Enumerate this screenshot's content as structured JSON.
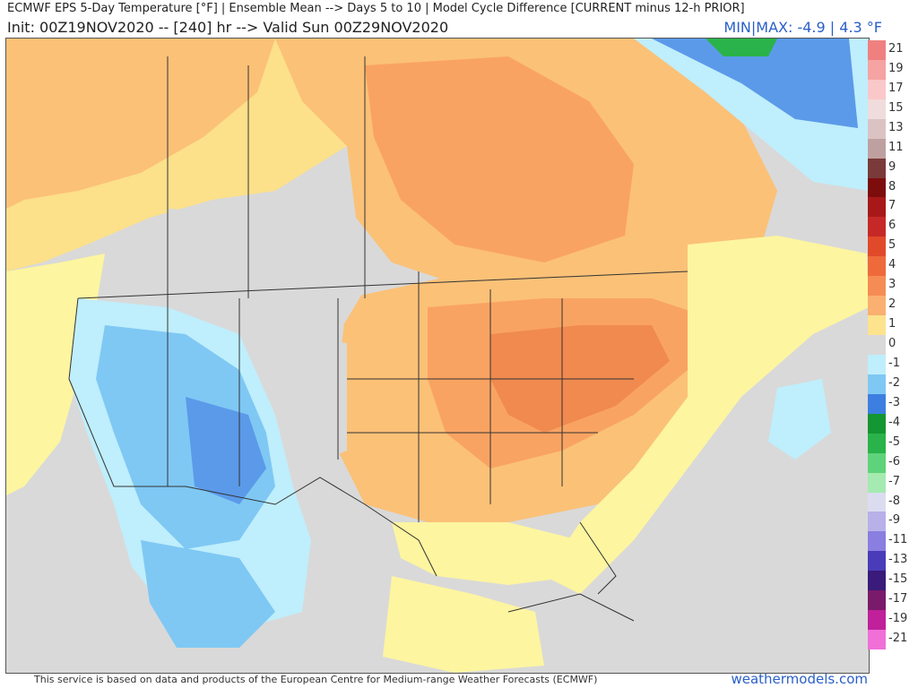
{
  "header": {
    "title": "ECMWF EPS 5-Day Temperature [°F] | Ensemble Mean --> Days 5 to 10 | Model Cycle Difference [CURRENT minus 12-h PRIOR]",
    "subtitle": "Init: 00Z19NOV2020 -- [240] hr --> Valid Sun 00Z29NOV2020",
    "minmax": "MIN|MAX: -4.9 | 4.3 °F"
  },
  "map": {
    "region": "North America",
    "colors": {
      "warm1": "#fdf5a0",
      "warm2": "#fce08a",
      "warm3": "#fbc177",
      "warm4": "#f9a362",
      "warm5": "#f08a4f",
      "neutral": "#d9d9d9",
      "cool1": "#bfeefc",
      "cool2": "#7fc8f4",
      "cool3": "#5b9ae9",
      "cool4": "#3a6fd8",
      "green": "#2ab34a",
      "border": "#333333"
    }
  },
  "legend": {
    "items": [
      {
        "label": "21",
        "color": "#f08080"
      },
      {
        "label": "19",
        "color": "#f5a3a3"
      },
      {
        "label": "17",
        "color": "#fac8c8"
      },
      {
        "label": "15",
        "color": "#f0dcdc"
      },
      {
        "label": "13",
        "color": "#dcc3c3"
      },
      {
        "label": "11",
        "color": "#bfa0a0"
      },
      {
        "label": "9",
        "color": "#7a3a3a"
      },
      {
        "label": "8",
        "color": "#7d0d0d"
      },
      {
        "label": "7",
        "color": "#a81818"
      },
      {
        "label": "6",
        "color": "#c62828"
      },
      {
        "label": "5",
        "color": "#e04a2a"
      },
      {
        "label": "4",
        "color": "#ee6a3a"
      },
      {
        "label": "3",
        "color": "#f58c55"
      },
      {
        "label": "2",
        "color": "#f9b070"
      },
      {
        "label": "1",
        "color": "#fde38d"
      },
      {
        "label": "0",
        "color": "#d9d9d9"
      },
      {
        "label": "-1",
        "color": "#bfeefc"
      },
      {
        "label": "-2",
        "color": "#7fc8f4"
      },
      {
        "label": "-3",
        "color": "#3d7fe0"
      },
      {
        "label": "-4",
        "color": "#149632"
      },
      {
        "label": "-5",
        "color": "#2ab34a"
      },
      {
        "label": "-6",
        "color": "#5fd37a"
      },
      {
        "label": "-7",
        "color": "#a5eab0"
      },
      {
        "label": "-8",
        "color": "#dcdcf0"
      },
      {
        "label": "-9",
        "color": "#b8b0e8"
      },
      {
        "label": "-11",
        "color": "#8a7ee0"
      },
      {
        "label": "-13",
        "color": "#4a3cb8"
      },
      {
        "label": "-15",
        "color": "#3a1a7a"
      },
      {
        "label": "-17",
        "color": "#7a1a6a"
      },
      {
        "label": "-19",
        "color": "#c0209a"
      },
      {
        "label": "-21",
        "color": "#f070d8"
      }
    ]
  },
  "footer": {
    "disclaimer": "This service is based on data and products of the European Centre for Medium-range Weather Forecasts (ECMWF)",
    "brand": "weathermodels.com"
  }
}
